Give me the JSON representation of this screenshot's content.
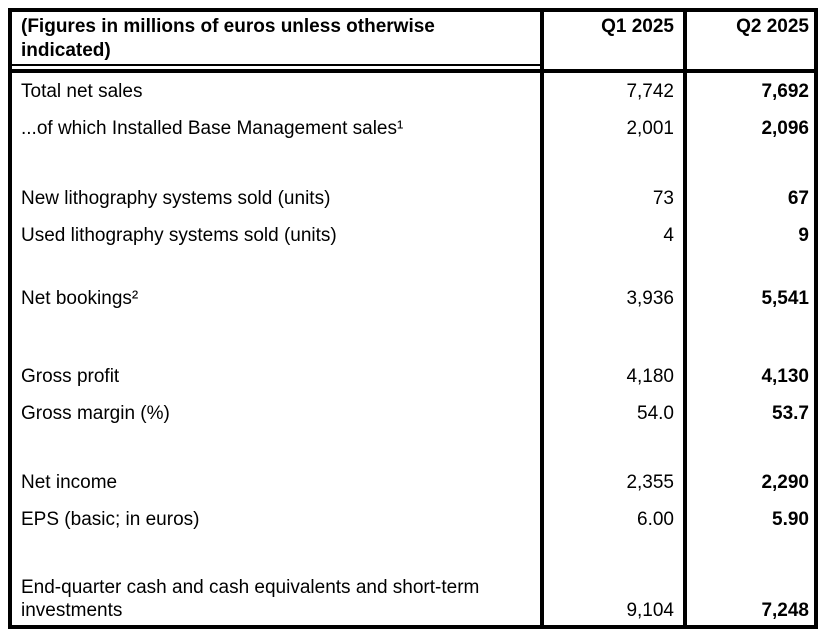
{
  "table": {
    "header": {
      "caption_line1": "(Figures in millions of euros unless otherwise",
      "caption_line2": "indicated)",
      "col_q1": "Q1 2025",
      "col_q2": "Q2 2025"
    },
    "rows": [
      {
        "label": "Total net sales",
        "q1": "7,742",
        "q2": "7,692"
      },
      {
        "label": "...of which Installed Base Management sales¹",
        "q1": "2,001",
        "q2": "2,096"
      },
      {
        "label": "New lithography systems sold (units)",
        "q1": "73",
        "q2": "67"
      },
      {
        "label": "Used lithography systems sold (units)",
        "q1": "4",
        "q2": "9"
      },
      {
        "label": "Net bookings²",
        "q1": "3,936",
        "q2": "5,541"
      },
      {
        "label": "Gross profit",
        "q1": "4,180",
        "q2": "4,130"
      },
      {
        "label": "Gross margin (%)",
        "q1": "54.0",
        "q2": "53.7"
      },
      {
        "label": "Net income",
        "q1": "2,355",
        "q2": "2,290"
      },
      {
        "label": "EPS (basic; in euros)",
        "q1": "6.00",
        "q2": "5.90"
      },
      {
        "label": "End-quarter cash and cash equivalents and short-term investments",
        "q1": "9,104",
        "q2": "7,248"
      }
    ],
    "colors": {
      "border": "#000000",
      "text": "#000000",
      "background": "#ffffff"
    }
  }
}
